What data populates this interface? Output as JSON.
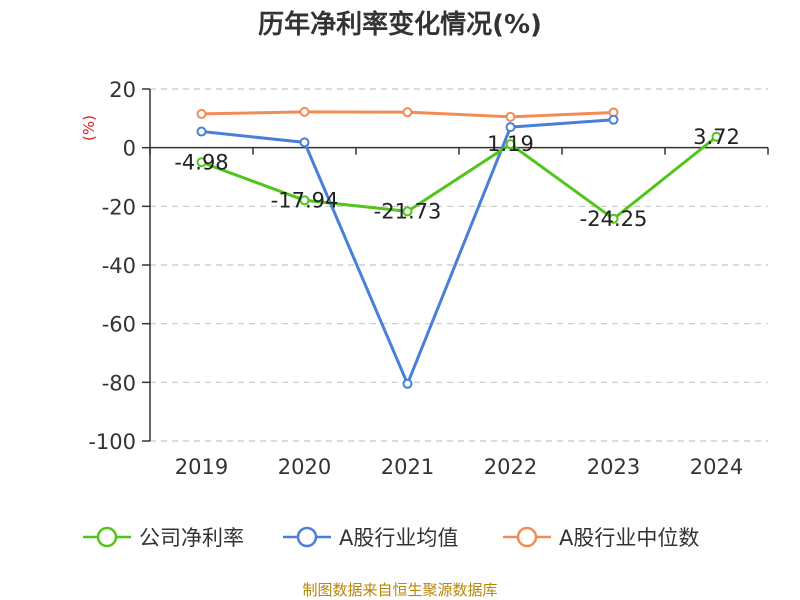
{
  "chart_data": {
    "type": "line",
    "title": "历年净利率变化情况(%)",
    "ylabel": "(%)",
    "xlabel": "",
    "categories": [
      "2019",
      "2020",
      "2021",
      "2022",
      "2023",
      "2024"
    ],
    "ylim": [
      -100,
      20
    ],
    "yticks": [
      20,
      0,
      -20,
      -40,
      -60,
      -80,
      -100
    ],
    "grid": true,
    "legend_position": "bottom",
    "series": [
      {
        "name": "公司净利率",
        "color": "#52c41a",
        "values": [
          -4.98,
          -17.94,
          -21.73,
          1.19,
          -24.25,
          3.72
        ],
        "labels": [
          "-4.98",
          "-17.94",
          "-21.73",
          "1.19",
          "-24.25",
          "3.72"
        ]
      },
      {
        "name": "A股行业均值",
        "color": "#4a7fd9",
        "values": [
          5.5,
          1.8,
          -80.5,
          7.0,
          9.5,
          null
        ]
      },
      {
        "name": "A股行业中位数",
        "color": "#f28c55",
        "values": [
          11.5,
          12.2,
          12.1,
          10.5,
          12.0,
          null
        ]
      }
    ]
  },
  "source_note": "制图数据来自恒生聚源数据库"
}
